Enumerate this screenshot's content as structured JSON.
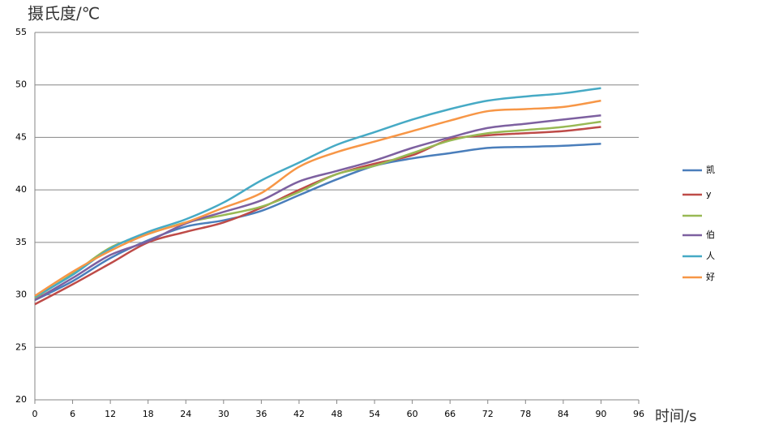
{
  "chart_data": {
    "type": "line",
    "title": "摄氏度/℃",
    "x_label": "时间/s",
    "x": [
      0,
      6,
      12,
      18,
      24,
      30,
      36,
      42,
      48,
      54,
      60,
      66,
      72,
      78,
      84,
      90
    ],
    "xlim": [
      0,
      96
    ],
    "xticks": [
      0,
      6,
      12,
      18,
      24,
      30,
      36,
      42,
      48,
      54,
      60,
      66,
      72,
      78,
      84,
      90,
      96
    ],
    "ylim": [
      20,
      55
    ],
    "yticks": [
      20,
      25,
      30,
      35,
      40,
      45,
      50,
      55
    ],
    "grid": true,
    "legend": "right",
    "series": [
      {
        "name": "凯",
        "color": "#4a7ebb",
        "values": [
          29.5,
          31.3,
          33.5,
          35.2,
          36.5,
          37.1,
          38.0,
          39.5,
          41.0,
          42.3,
          43.0,
          43.5,
          44.0,
          44.1,
          44.2,
          44.4
        ]
      },
      {
        "name": "y",
        "color": "#be4b48",
        "values": [
          29.1,
          31.0,
          33.0,
          35.0,
          36.0,
          36.9,
          38.3,
          40.0,
          41.5,
          42.5,
          43.3,
          44.8,
          45.2,
          45.4,
          45.6,
          46.0
        ]
      },
      {
        "name": null,
        "color": "#98b954",
        "values": [
          29.7,
          32.0,
          34.5,
          35.8,
          36.9,
          37.6,
          38.4,
          39.8,
          41.5,
          42.3,
          43.5,
          44.7,
          45.4,
          45.7,
          46.0,
          46.5
        ]
      },
      {
        "name": "伯",
        "color": "#7d60a0",
        "values": [
          29.5,
          31.6,
          33.8,
          35.1,
          36.8,
          37.9,
          39.0,
          40.8,
          41.8,
          42.8,
          44.0,
          45.0,
          45.9,
          46.3,
          46.7,
          47.1
        ]
      },
      {
        "name": "人",
        "color": "#46aac5",
        "values": [
          29.8,
          31.9,
          34.4,
          36.0,
          37.2,
          38.8,
          40.9,
          42.6,
          44.3,
          45.5,
          46.7,
          47.7,
          48.5,
          48.9,
          49.2,
          49.7
        ]
      },
      {
        "name": "好",
        "color": "#f79646",
        "values": [
          29.9,
          32.2,
          34.2,
          35.8,
          36.9,
          38.3,
          39.7,
          42.2,
          43.6,
          44.6,
          45.6,
          46.6,
          47.5,
          47.7,
          47.9,
          48.5
        ]
      }
    ]
  }
}
